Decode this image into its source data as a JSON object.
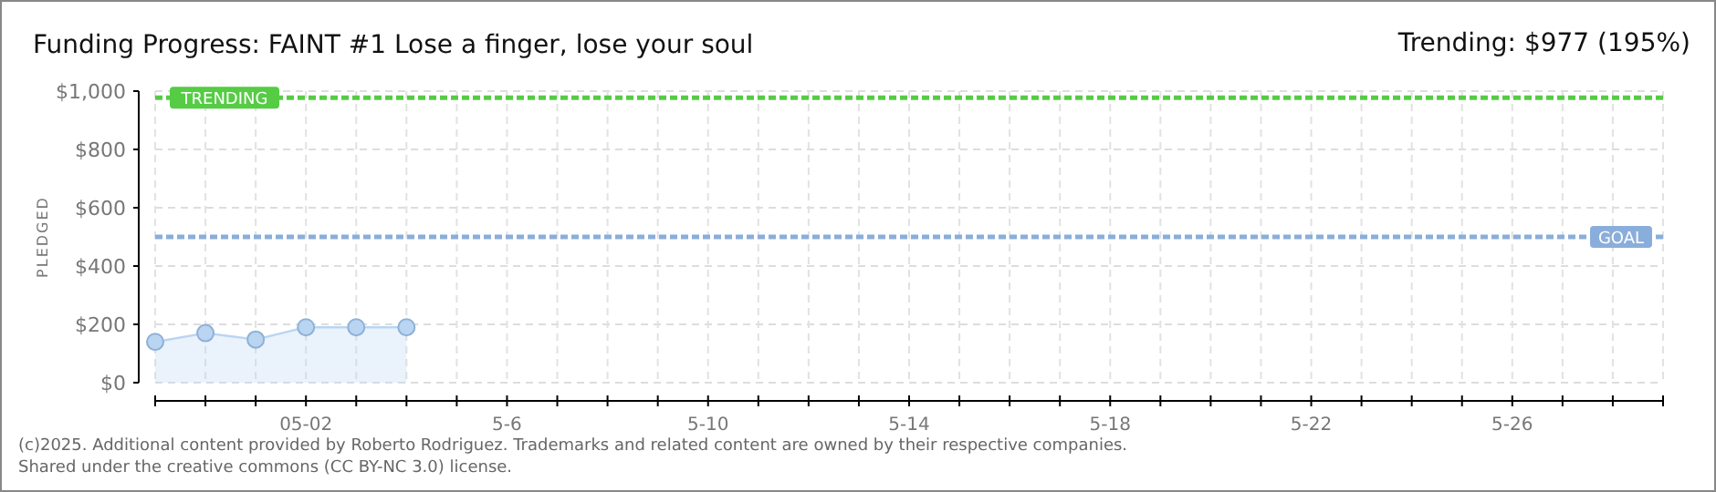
{
  "chart_data": {
    "type": "area",
    "title": "Funding Progress: FAINT #1 Lose a finger, lose your soul",
    "subtitle": "Trending: $977 (195%)",
    "ylabel": "PLEDGED",
    "x": [
      "2025-04-29",
      "2025-04-30",
      "2025-05-01",
      "2025-05-02",
      "2025-05-03",
      "2025-05-04"
    ],
    "series": [
      {
        "color": "#b9d5f2",
        "values": [
          140,
          170,
          148,
          190,
          190,
          190
        ]
      }
    ],
    "xlim": [
      "2025-04-29",
      "2025-05-29"
    ],
    "xticks": [
      {
        "value": "2025-04-29",
        "label": null
      },
      {
        "value": "2025-04-30",
        "label": null
      },
      {
        "value": "2025-05-01",
        "label": null
      },
      {
        "value": "2025-05-02",
        "label": "05-02"
      },
      {
        "value": "2025-05-03",
        "label": null
      },
      {
        "value": "2025-05-04",
        "label": null
      },
      {
        "value": "2025-05-05",
        "label": null
      },
      {
        "value": "2025-05-06",
        "label": "5-6"
      },
      {
        "value": "2025-05-07",
        "label": null
      },
      {
        "value": "2025-05-08",
        "label": null
      },
      {
        "value": "2025-05-09",
        "label": null
      },
      {
        "value": "2025-05-10",
        "label": "5-10"
      },
      {
        "value": "2025-05-11",
        "label": null
      },
      {
        "value": "2025-05-12",
        "label": null
      },
      {
        "value": "2025-05-13",
        "label": null
      },
      {
        "value": "2025-05-14",
        "label": "5-14"
      },
      {
        "value": "2025-05-15",
        "label": null
      },
      {
        "value": "2025-05-16",
        "label": null
      },
      {
        "value": "2025-05-17",
        "label": null
      },
      {
        "value": "2025-05-18",
        "label": "5-18"
      },
      {
        "value": "2025-05-19",
        "label": null
      },
      {
        "value": "2025-05-20",
        "label": null
      },
      {
        "value": "2025-05-21",
        "label": null
      },
      {
        "value": "2025-05-22",
        "label": "5-22"
      },
      {
        "value": "2025-05-23",
        "label": null
      },
      {
        "value": "2025-05-24",
        "label": null
      },
      {
        "value": "2025-05-25",
        "label": null
      },
      {
        "value": "2025-05-26",
        "label": "5-26"
      },
      {
        "value": "2025-05-27",
        "label": null
      },
      {
        "value": "2025-05-28",
        "label": null
      },
      {
        "value": "2025-05-29",
        "label": null
      }
    ],
    "ylim": [
      0,
      1000
    ],
    "yticks": [
      {
        "value": 0,
        "label": "$0"
      },
      {
        "value": 200,
        "label": "$200"
      },
      {
        "value": 400,
        "label": "$400"
      },
      {
        "value": 600,
        "label": "$600"
      },
      {
        "value": 800,
        "label": "$800"
      },
      {
        "value": 1000,
        "label": "$1,000"
      }
    ],
    "ref_lines": [
      {
        "axis": "y",
        "value": 977,
        "label": "TRENDING",
        "color": "#55cc44",
        "line_style": "dashed"
      },
      {
        "axis": "y",
        "value": 500,
        "label": "GOAL",
        "color": "#8aaedb",
        "line_style": "dashed"
      }
    ],
    "grid": true,
    "marker": "circle",
    "annotations": [
      "(c)2025. Additional content provided by Roberto Rodriguez. Trademarks and related content are owned by their respective companies.",
      "Shared under the creative commons (CC BY-NC 3.0) license."
    ]
  }
}
